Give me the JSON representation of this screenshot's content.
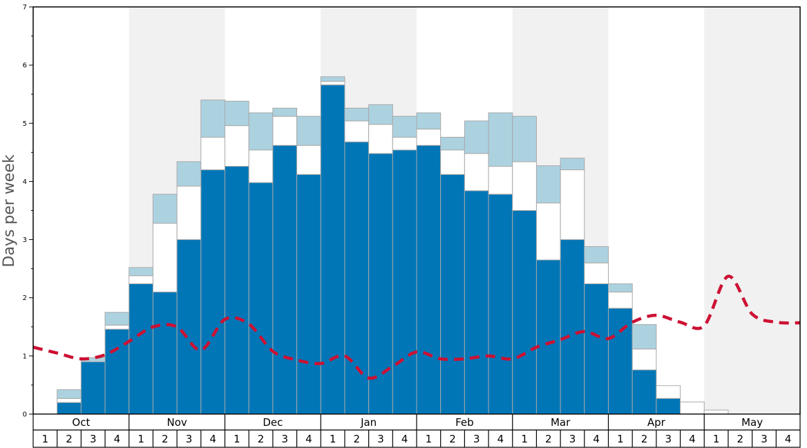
{
  "chart_data": {
    "type": "bar",
    "stacked": true,
    "title": "",
    "xlabel": "",
    "ylabel": "Days per week",
    "ylim": [
      0,
      7
    ],
    "yticks": [
      0,
      1,
      2,
      3,
      4,
      5,
      6,
      7
    ],
    "grid": false,
    "legend": "none",
    "months": [
      "Oct",
      "Nov",
      "Dec",
      "Jan",
      "Feb",
      "Mar",
      "Apr",
      "May"
    ],
    "week_labels": [
      "1",
      "2",
      "3",
      "4"
    ],
    "shaded_months": [
      "Nov",
      "Jan",
      "Mar",
      "May"
    ],
    "series": [
      {
        "color": "#0076b7",
        "values": [
          0,
          0.2,
          0.9,
          1.46,
          2.24,
          2.1,
          3.0,
          4.2,
          4.26,
          3.98,
          4.62,
          4.12,
          5.66,
          4.68,
          4.48,
          4.54,
          4.62,
          4.12,
          3.84,
          3.78,
          3.5,
          2.65,
          3.0,
          2.24,
          1.82,
          0.76,
          0.27,
          0,
          0,
          0,
          0,
          0
        ]
      },
      {
        "color": "#ffffff",
        "values": [
          0,
          0.07,
          0,
          0.07,
          0.14,
          1.18,
          0.92,
          0.56,
          0.7,
          0.56,
          0.5,
          0.5,
          0.06,
          0.36,
          0.5,
          0.22,
          0.28,
          0.42,
          0.64,
          0.48,
          0.84,
          0.98,
          1.2,
          0.36,
          0.28,
          0.36,
          0.22,
          0.21,
          0.07,
          0,
          0,
          0
        ]
      },
      {
        "color": "#acd2e0",
        "values": [
          0,
          0.15,
          0.07,
          0.22,
          0.14,
          0.5,
          0.42,
          0.64,
          0.42,
          0.64,
          0.14,
          0.5,
          0.08,
          0.22,
          0.34,
          0.36,
          0.28,
          0.22,
          0.56,
          0.92,
          0.78,
          0.64,
          0.2,
          0.28,
          0.14,
          0.42,
          0,
          0,
          0,
          0,
          0,
          0
        ]
      }
    ],
    "line": {
      "color": "#cc1133",
      "style": "dashed",
      "values": [
        1.15,
        1.05,
        0.95,
        1.02,
        1.25,
        1.5,
        1.5,
        1.1,
        1.63,
        1.55,
        1.08,
        0.93,
        0.87,
        1.0,
        0.62,
        0.82,
        1.07,
        0.95,
        0.95,
        1.0,
        0.95,
        1.15,
        1.28,
        1.42,
        1.3,
        1.58,
        1.7,
        1.58,
        1.52,
        2.37,
        1.72,
        1.58,
        1.57
      ]
    }
  }
}
